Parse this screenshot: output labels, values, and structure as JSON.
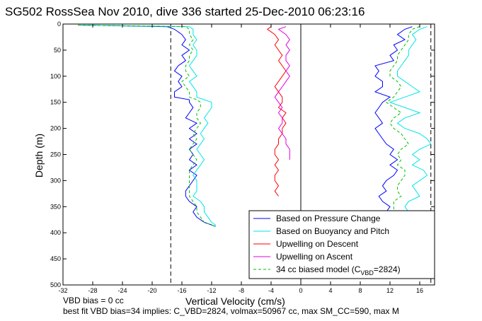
{
  "chart_data": {
    "type": "line",
    "title": "SG502 RossSea Nov 2010, dive 336 started 25-Dec-2010 06:23:16",
    "xlabel": "Vertical Velocity (cm/s)",
    "ylabel": "Depth (m)",
    "xlim": [
      -32,
      18
    ],
    "ylim": [
      0,
      500
    ],
    "y_reversed": true,
    "x_ticks": [
      -32,
      -28,
      -24,
      -20,
      -16,
      -12,
      -8,
      -4,
      0,
      4,
      8,
      12,
      16
    ],
    "y_ticks": [
      0,
      50,
      100,
      150,
      200,
      250,
      300,
      350,
      400,
      450,
      500
    ],
    "x_tick_labels": [
      "-32",
      "-28",
      "-24",
      "-20",
      "-16",
      "-12",
      "-8",
      "-4",
      "0",
      "4",
      "8",
      "12",
      "16"
    ],
    "y_tick_labels": [
      "0",
      "50",
      "100",
      "150",
      "200",
      "250",
      "300",
      "350",
      "400",
      "450",
      "500"
    ],
    "grid": false,
    "legend_position": "bottom-right",
    "reference_lines": [
      {
        "x": -17.5,
        "style": "dashed",
        "color": "#000000"
      },
      {
        "x": 0,
        "style": "solid",
        "color": "#000000"
      },
      {
        "x": 17.5,
        "style": "dashed",
        "color": "#000000"
      }
    ],
    "series": [
      {
        "name": "Based on Pressure Change",
        "color": "#0000ff",
        "depth": [
          2,
          5,
          10,
          20,
          30,
          40,
          50,
          60,
          70,
          80,
          90,
          100,
          110,
          120,
          130,
          140,
          145,
          150,
          160,
          170,
          180,
          190,
          200,
          210,
          220,
          230,
          240,
          250,
          260,
          270,
          280,
          290,
          300,
          310,
          320,
          330,
          340,
          350,
          360,
          370,
          380,
          385,
          388
        ],
        "up": [
          -30,
          -18,
          -17,
          -16,
          -15.5,
          -16,
          -15,
          -16,
          -15.5,
          -16.5,
          -17,
          -16,
          -16.5,
          -16,
          -17,
          -17,
          -15,
          -15,
          -14.5,
          -15,
          -15.5,
          -14,
          -15,
          -14,
          -15,
          -14,
          -15,
          -14.5,
          -15,
          -14,
          -15,
          -14,
          -14.5,
          -15,
          -15.5,
          -15.5,
          -15,
          -14,
          -14.5,
          -14,
          -13,
          -12,
          -11.5
        ],
        "down_depth": [
          5,
          10,
          20,
          30,
          40,
          50,
          60,
          70,
          80,
          90,
          100,
          110,
          120,
          130,
          140,
          150,
          160,
          170,
          180,
          190,
          200,
          210,
          220,
          230,
          240,
          250,
          260,
          270,
          280,
          290,
          300,
          310,
          320,
          330,
          340,
          350,
          360
        ],
        "down": [
          15,
          14,
          13,
          14,
          12.5,
          13,
          12,
          12.5,
          10,
          10.5,
          10,
          11,
          11,
          10,
          12,
          11,
          10.5,
          10,
          10.5,
          11,
          10,
          10.5,
          11,
          11.5,
          12.5,
          12,
          13,
          12,
          13,
          12.5,
          11.5,
          11,
          11.5,
          10.5,
          11,
          12,
          11.5
        ]
      },
      {
        "name": "Based on Buoyancy and Pitch",
        "color": "#00e5e5",
        "depth": [
          2,
          5,
          10,
          20,
          30,
          40,
          50,
          60,
          70,
          80,
          90,
          100,
          110,
          120,
          130,
          140,
          145,
          150,
          160,
          170,
          180,
          190,
          200,
          210,
          220,
          230,
          240,
          250,
          260,
          270,
          280,
          290,
          300,
          310,
          320,
          330,
          340,
          350,
          360,
          370,
          380,
          385,
          388
        ],
        "up": [
          -30,
          -15,
          -14.5,
          -14.5,
          -14,
          -14.5,
          -14,
          -14,
          -14.5,
          -15,
          -14.5,
          -14,
          -15,
          -14.5,
          -14,
          -14,
          -13,
          -12,
          -12,
          -12.5,
          -13,
          -12.5,
          -13,
          -13.5,
          -13,
          -13.5,
          -14,
          -13.5,
          -13,
          -13.5,
          -14,
          -14.5,
          -14,
          -14,
          -14,
          -14.5,
          -13.5,
          -13,
          -13,
          -12.5,
          -12,
          -11.5,
          -11.5
        ],
        "down_depth": [
          5,
          10,
          20,
          30,
          40,
          50,
          60,
          70,
          80,
          90,
          100,
          110,
          120,
          130,
          140,
          150,
          160,
          170,
          180,
          190,
          200,
          210,
          220,
          230,
          240,
          250,
          260,
          270,
          280,
          290,
          300,
          310,
          320,
          330,
          340,
          350,
          360
        ],
        "down": [
          17,
          16,
          15,
          15.5,
          15,
          14.5,
          14.5,
          14,
          13.5,
          13,
          13,
          14,
          15,
          16,
          14,
          12,
          14,
          16,
          14,
          13,
          14,
          16,
          17,
          17.5,
          16,
          15,
          16,
          15,
          16.5,
          17,
          16,
          15,
          15.5,
          16,
          14.5,
          14,
          14.5
        ]
      },
      {
        "name": "Upwelling on Descent",
        "color": "#ff0000",
        "depth": [
          5,
          10,
          20,
          30,
          40,
          50,
          60,
          70,
          80,
          90,
          100,
          110,
          120,
          130,
          140,
          150,
          160,
          170,
          180,
          190,
          200,
          210,
          220,
          230,
          240,
          250,
          260,
          270,
          280,
          290,
          300,
          310,
          320,
          330
        ],
        "values": [
          -4,
          -4.5,
          -3.5,
          -3,
          -3.5,
          -3,
          -2.5,
          -3,
          -2.5,
          -2,
          -2.5,
          -3,
          -3.5,
          -3,
          -2.5,
          -2.5,
          -3,
          -2,
          -2.5,
          -2,
          -2.5,
          -2.5,
          -3,
          -3,
          -3.5,
          -3.5,
          -3,
          -3.5,
          -3,
          -3.5,
          -3.5,
          -3,
          -3.5,
          -3
        ]
      },
      {
        "name": "Upwelling on Ascent",
        "color": "#e000e0",
        "depth": [
          5,
          10,
          20,
          30,
          40,
          50,
          60,
          70,
          80,
          90,
          100,
          110,
          120,
          130,
          140,
          150,
          160,
          170,
          180,
          190,
          200,
          210,
          220,
          230,
          240,
          250,
          260
        ],
        "values": [
          -2,
          -3,
          -2,
          -1.5,
          -2,
          -1.5,
          -2,
          -2,
          -1.5,
          -2,
          -1.5,
          -2,
          -2.5,
          -3,
          -3.5,
          -3,
          -2.5,
          -3,
          -2.5,
          -2.5,
          -3,
          -2.5,
          -2,
          -2,
          -1.5,
          -1.5,
          -1.5
        ]
      },
      {
        "name": "34 cc biased model (C_VBD=2824)",
        "legend_main": "34 cc biased model (C",
        "legend_sub": "VBD",
        "legend_tail": "=2824)",
        "color": "#00c000",
        "style": "dashed",
        "depth": [
          2,
          5,
          10,
          20,
          30,
          40,
          50,
          60,
          70,
          80,
          90,
          100,
          110,
          120,
          130,
          140,
          145,
          150,
          160,
          170,
          180,
          190,
          200,
          210,
          220,
          230,
          240,
          250,
          260,
          270,
          280,
          290,
          300,
          310,
          320,
          330,
          340,
          350,
          360,
          370,
          380,
          385,
          388
        ],
        "up": [
          -30,
          -15.5,
          -15,
          -15,
          -14.5,
          -15,
          -14.5,
          -15,
          -15,
          -15.5,
          -15.5,
          -15,
          -16,
          -15.5,
          -15,
          -15,
          -14,
          -13.5,
          -13.5,
          -14,
          -14,
          -13.5,
          -14,
          -14.5,
          -14,
          -14.5,
          -15,
          -14.5,
          -14,
          -14.5,
          -15,
          -15,
          -15,
          -15,
          -15,
          -15,
          -14.5,
          -14,
          -14,
          -13.5,
          -13,
          -12,
          -11.5
        ],
        "down_depth": [
          5,
          10,
          20,
          30,
          40,
          50,
          60,
          70,
          80,
          90,
          100,
          110,
          120,
          130,
          140,
          150,
          160,
          170,
          180,
          190,
          200,
          210,
          220,
          230,
          240,
          250,
          260,
          270,
          280,
          290,
          300,
          310,
          320,
          330,
          340,
          350,
          360
        ],
        "down": [
          16,
          15,
          14.5,
          14.5,
          14,
          13.5,
          13,
          13,
          12.5,
          12,
          12,
          13,
          13.5,
          13,
          12.5,
          11.5,
          12.5,
          13.5,
          12.5,
          12,
          12.5,
          13.5,
          14,
          14.5,
          13.5,
          13,
          13.5,
          13,
          14,
          14,
          13.5,
          13,
          13,
          13.5,
          12.5,
          12.5,
          12.5
        ]
      }
    ]
  },
  "notes": {
    "line1": "VBD bias = 0 cc",
    "line2": "best fit VBD bias=34 implies: C_VBD=2824, volmax=50967 cc, max SM_CC=590, max M"
  },
  "colors": {
    "axes": "#000000",
    "background": "#ffffff"
  }
}
